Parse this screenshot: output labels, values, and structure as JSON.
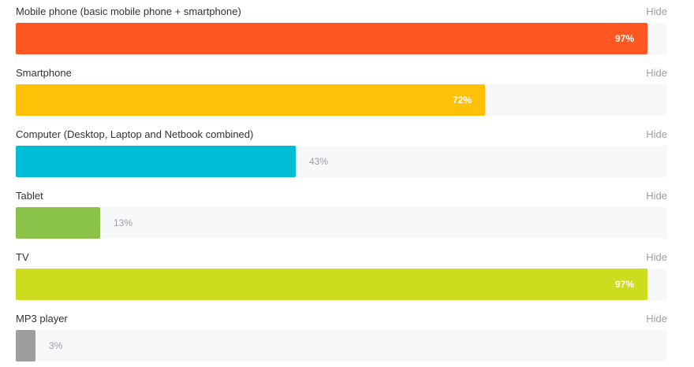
{
  "chart_data": {
    "type": "bar",
    "orientation": "horizontal",
    "scale_max": 100,
    "categories": [
      "Mobile phone (basic mobile phone + smartphone)",
      "Smartphone",
      "Computer (Desktop, Laptop and Netbook combined)",
      "Tablet",
      "TV",
      "MP3 player"
    ],
    "values": [
      97,
      72,
      43,
      13,
      97,
      3
    ],
    "value_labels": [
      "97%",
      "72%",
      "43%",
      "13%",
      "97%",
      "3%"
    ],
    "colors": [
      "#ff5722",
      "#ffc107",
      "#00bcd4",
      "#8bc34a",
      "#cddc1e",
      "#9e9e9e"
    ],
    "label_inside": [
      true,
      true,
      false,
      false,
      true,
      false
    ],
    "hide_label": "Hide",
    "track_color": "#f7f8fa",
    "grid": false,
    "legend": "none"
  }
}
